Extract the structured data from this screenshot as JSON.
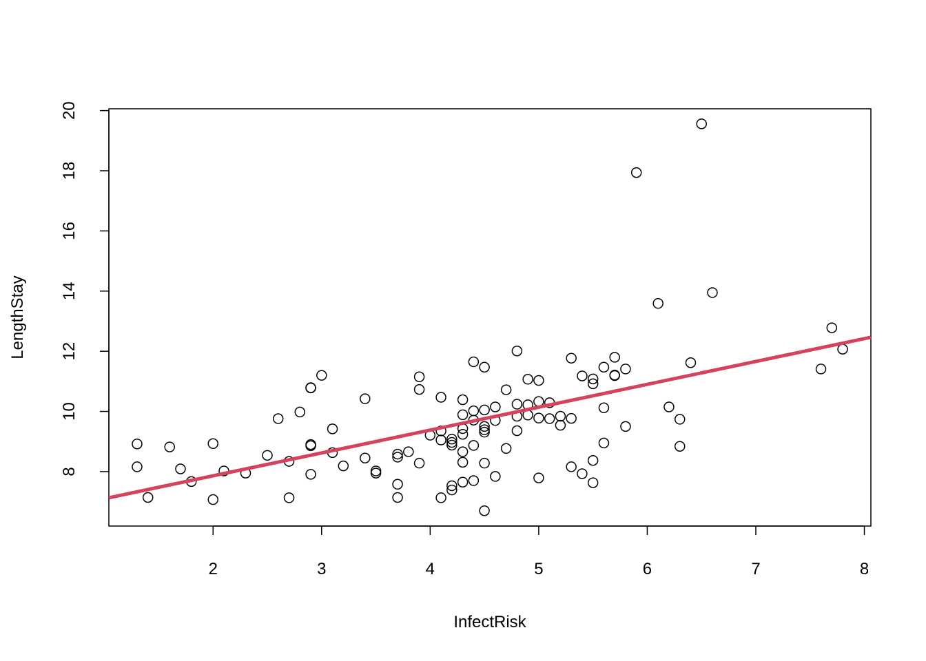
{
  "chart_data": {
    "type": "scatter",
    "title": "",
    "xlabel": "InfectRisk",
    "ylabel": "LengthStay",
    "xlim": [
      1.04,
      8.06
    ],
    "ylim": [
      6.19,
      20.06
    ],
    "x_ticks": [
      2,
      3,
      4,
      5,
      6,
      7,
      8
    ],
    "y_ticks": [
      8,
      10,
      12,
      14,
      16,
      18,
      20
    ],
    "grid": false,
    "legend": "none",
    "colors": {
      "points": "#000000",
      "fit_line": "#D3435E",
      "background": "#ffffff"
    },
    "fit_line": {
      "name": "",
      "intercept": 6.34,
      "slope": 0.76
    },
    "points": [
      [
        1.3,
        8.92
      ],
      [
        1.3,
        8.16
      ],
      [
        1.4,
        7.14
      ],
      [
        1.6,
        8.82
      ],
      [
        1.7,
        8.09
      ],
      [
        1.8,
        7.67
      ],
      [
        2.0,
        8.93
      ],
      [
        2.0,
        7.07
      ],
      [
        2.1,
        8.02
      ],
      [
        2.3,
        7.95
      ],
      [
        2.5,
        8.54
      ],
      [
        2.6,
        9.76
      ],
      [
        2.7,
        8.34
      ],
      [
        2.7,
        7.13
      ],
      [
        2.8,
        9.98
      ],
      [
        2.9,
        10.79
      ],
      [
        2.9,
        10.78
      ],
      [
        2.9,
        8.9
      ],
      [
        2.9,
        8.86
      ],
      [
        2.9,
        7.91
      ],
      [
        3.0,
        11.2
      ],
      [
        3.1,
        9.42
      ],
      [
        3.1,
        8.63
      ],
      [
        3.2,
        8.19
      ],
      [
        3.4,
        10.42
      ],
      [
        3.4,
        8.45
      ],
      [
        3.5,
        8.02
      ],
      [
        3.5,
        7.95
      ],
      [
        3.7,
        8.58
      ],
      [
        3.7,
        8.48
      ],
      [
        3.7,
        7.58
      ],
      [
        3.7,
        7.14
      ],
      [
        3.8,
        8.66
      ],
      [
        3.9,
        11.15
      ],
      [
        3.9,
        10.73
      ],
      [
        3.9,
        8.28
      ],
      [
        4.0,
        9.21
      ],
      [
        4.1,
        10.47
      ],
      [
        4.1,
        9.35
      ],
      [
        4.1,
        9.05
      ],
      [
        4.1,
        7.13
      ],
      [
        4.2,
        9.08
      ],
      [
        4.2,
        8.97
      ],
      [
        4.2,
        8.88
      ],
      [
        4.2,
        7.53
      ],
      [
        4.2,
        7.39
      ],
      [
        4.3,
        10.39
      ],
      [
        4.3,
        9.89
      ],
      [
        4.3,
        9.43
      ],
      [
        4.3,
        9.24
      ],
      [
        4.3,
        8.66
      ],
      [
        4.3,
        8.31
      ],
      [
        4.3,
        7.65
      ],
      [
        4.4,
        11.65
      ],
      [
        4.4,
        10.02
      ],
      [
        4.4,
        9.71
      ],
      [
        4.4,
        8.87
      ],
      [
        4.4,
        7.7
      ],
      [
        4.5,
        11.47
      ],
      [
        4.5,
        10.05
      ],
      [
        4.5,
        9.5
      ],
      [
        4.5,
        9.39
      ],
      [
        4.5,
        9.31
      ],
      [
        4.5,
        8.28
      ],
      [
        4.5,
        6.7
      ],
      [
        4.6,
        10.15
      ],
      [
        4.6,
        9.7
      ],
      [
        4.6,
        7.84
      ],
      [
        4.7,
        10.72
      ],
      [
        4.7,
        8.77
      ],
      [
        4.8,
        12.01
      ],
      [
        4.8,
        10.24
      ],
      [
        4.8,
        9.84
      ],
      [
        4.8,
        9.36
      ],
      [
        4.9,
        11.07
      ],
      [
        4.9,
        10.22
      ],
      [
        4.9,
        9.88
      ],
      [
        5.0,
        11.03
      ],
      [
        5.0,
        10.33
      ],
      [
        5.0,
        9.78
      ],
      [
        5.0,
        7.79
      ],
      [
        5.1,
        10.29
      ],
      [
        5.1,
        9.76
      ],
      [
        5.2,
        9.84
      ],
      [
        5.2,
        9.54
      ],
      [
        5.3,
        11.77
      ],
      [
        5.3,
        9.77
      ],
      [
        5.3,
        8.16
      ],
      [
        5.4,
        11.18
      ],
      [
        5.4,
        7.93
      ],
      [
        5.5,
        11.08
      ],
      [
        5.5,
        10.92
      ],
      [
        5.5,
        8.37
      ],
      [
        5.5,
        7.63
      ],
      [
        5.6,
        11.47
      ],
      [
        5.6,
        10.12
      ],
      [
        5.6,
        8.95
      ],
      [
        5.7,
        11.8
      ],
      [
        5.7,
        11.21
      ],
      [
        5.7,
        11.19
      ],
      [
        5.8,
        11.41
      ],
      [
        5.8,
        9.5
      ],
      [
        5.9,
        17.94
      ],
      [
        6.1,
        13.59
      ],
      [
        6.2,
        10.15
      ],
      [
        6.3,
        9.74
      ],
      [
        6.3,
        8.84
      ],
      [
        6.4,
        11.62
      ],
      [
        6.5,
        19.56
      ],
      [
        6.6,
        13.95
      ],
      [
        7.6,
        11.41
      ],
      [
        7.7,
        12.78
      ],
      [
        7.8,
        12.07
      ]
    ]
  }
}
